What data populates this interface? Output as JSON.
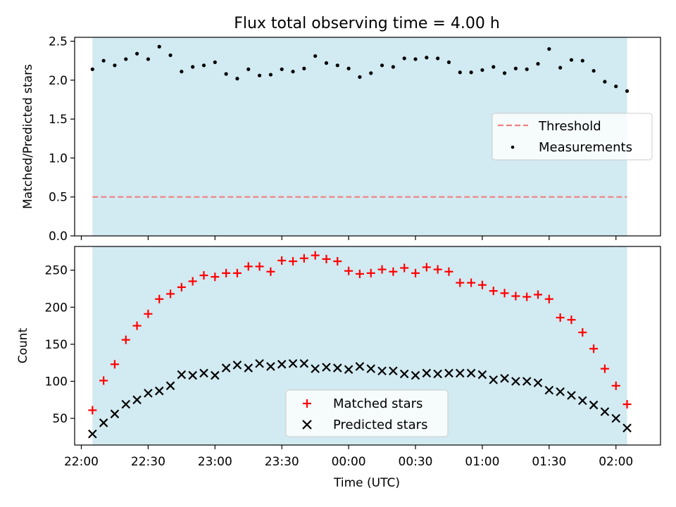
{
  "chart_data": [
    {
      "type": "scatter",
      "title": "Flux total observing time = 4.00 h",
      "xlabel": "",
      "ylabel": "Matched/Predicted stars",
      "ylim": [
        0.0,
        2.55
      ],
      "yticks": [
        "0.0",
        "0.5",
        "1.0",
        "1.5",
        "2.0",
        "2.5"
      ],
      "threshold": 0.5,
      "legend_position": "center-right",
      "legend": [
        "Threshold",
        "Measurements"
      ],
      "threshold_color": "#f08080",
      "point_color": "#000000",
      "shaded_color": "#add8e6",
      "series": [
        {
          "name": "Measurements",
          "x": [
            "22:05",
            "22:10",
            "22:15",
            "22:20",
            "22:25",
            "22:30",
            "22:35",
            "22:40",
            "22:45",
            "22:50",
            "22:55",
            "23:00",
            "23:05",
            "23:10",
            "23:15",
            "23:20",
            "23:25",
            "23:30",
            "23:35",
            "23:40",
            "23:45",
            "23:50",
            "23:55",
            "00:00",
            "00:05",
            "00:10",
            "00:15",
            "00:20",
            "00:25",
            "00:30",
            "00:35",
            "00:40",
            "00:45",
            "00:50",
            "00:55",
            "01:00",
            "01:05",
            "01:10",
            "01:15",
            "01:20",
            "01:25",
            "01:30",
            "01:35",
            "01:40",
            "01:45",
            "01:50",
            "01:55",
            "02:00",
            "02:05"
          ],
          "values": [
            2.14,
            2.25,
            2.19,
            2.27,
            2.34,
            2.27,
            2.43,
            2.32,
            2.11,
            2.17,
            2.19,
            2.23,
            2.08,
            2.02,
            2.14,
            2.06,
            2.07,
            2.14,
            2.11,
            2.15,
            2.31,
            2.22,
            2.19,
            2.15,
            2.04,
            2.09,
            2.19,
            2.17,
            2.28,
            2.27,
            2.29,
            2.28,
            2.23,
            2.1,
            2.1,
            2.13,
            2.17,
            2.09,
            2.15,
            2.14,
            2.21,
            2.4,
            2.16,
            2.26,
            2.25,
            2.12,
            1.98,
            1.92,
            1.86
          ]
        }
      ]
    },
    {
      "type": "scatter",
      "xlabel": "Time (UTC)",
      "ylabel": "Count",
      "ylim": [
        14,
        282
      ],
      "yticks": [
        "50",
        "100",
        "150",
        "200",
        "250"
      ],
      "xticks": [
        "22:00",
        "22:30",
        "23:00",
        "23:30",
        "00:00",
        "00:30",
        "01:00",
        "01:30",
        "02:00"
      ],
      "legend_position": "lower-center",
      "legend": [
        "Matched stars",
        "Predicted stars"
      ],
      "series": [
        {
          "name": "Matched stars",
          "marker": "+",
          "color": "#ff0000",
          "x": [
            "22:05",
            "22:10",
            "22:15",
            "22:20",
            "22:25",
            "22:30",
            "22:35",
            "22:40",
            "22:45",
            "22:50",
            "22:55",
            "23:00",
            "23:05",
            "23:10",
            "23:15",
            "23:20",
            "23:25",
            "23:30",
            "23:35",
            "23:40",
            "23:45",
            "23:50",
            "23:55",
            "00:00",
            "00:05",
            "00:10",
            "00:15",
            "00:20",
            "00:25",
            "00:30",
            "00:35",
            "00:40",
            "00:45",
            "00:50",
            "00:55",
            "01:00",
            "01:05",
            "01:10",
            "01:15",
            "01:20",
            "01:25",
            "01:30",
            "01:35",
            "01:40",
            "01:45",
            "01:50",
            "01:55",
            "02:00",
            "02:05"
          ],
          "values": [
            61,
            101,
            123,
            156,
            175,
            191,
            211,
            218,
            227,
            235,
            243,
            241,
            246,
            246,
            255,
            255,
            248,
            263,
            262,
            266,
            270,
            265,
            262,
            249,
            245,
            246,
            251,
            248,
            253,
            246,
            254,
            251,
            248,
            233,
            233,
            230,
            222,
            219,
            215,
            214,
            217,
            211,
            186,
            183,
            166,
            144,
            117,
            94,
            69
          ]
        },
        {
          "name": "Predicted stars",
          "marker": "x",
          "color": "#000000",
          "x": [
            "22:05",
            "22:10",
            "22:15",
            "22:20",
            "22:25",
            "22:30",
            "22:35",
            "22:40",
            "22:45",
            "22:50",
            "22:55",
            "23:00",
            "23:05",
            "23:10",
            "23:15",
            "23:20",
            "23:25",
            "23:30",
            "23:35",
            "23:40",
            "23:45",
            "23:50",
            "23:55",
            "00:00",
            "00:05",
            "00:10",
            "00:15",
            "00:20",
            "00:25",
            "00:30",
            "00:35",
            "00:40",
            "00:45",
            "00:50",
            "00:55",
            "01:00",
            "01:05",
            "01:10",
            "01:15",
            "01:20",
            "01:25",
            "01:30",
            "01:35",
            "01:40",
            "01:45",
            "01:50",
            "01:55",
            "02:00",
            "02:05"
          ],
          "values": [
            29,
            44,
            56,
            69,
            75,
            84,
            87,
            94,
            109,
            108,
            111,
            108,
            118,
            122,
            118,
            124,
            120,
            123,
            124,
            124,
            117,
            119,
            118,
            116,
            120,
            117,
            114,
            114,
            110,
            108,
            111,
            110,
            111,
            111,
            111,
            109,
            102,
            104,
            100,
            100,
            98,
            88,
            86,
            81,
            74,
            68,
            59,
            50,
            37
          ]
        }
      ]
    }
  ]
}
